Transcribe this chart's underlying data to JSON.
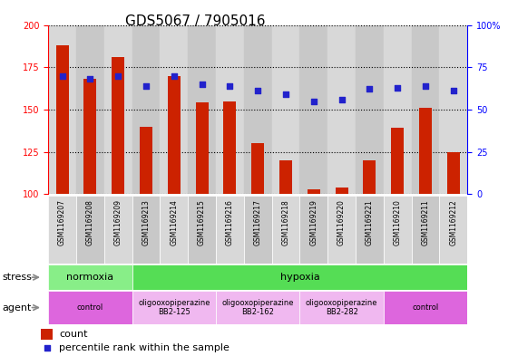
{
  "title": "GDS5067 / 7905016",
  "samples": [
    "GSM1169207",
    "GSM1169208",
    "GSM1169209",
    "GSM1169213",
    "GSM1169214",
    "GSM1169215",
    "GSM1169216",
    "GSM1169217",
    "GSM1169218",
    "GSM1169219",
    "GSM1169220",
    "GSM1169221",
    "GSM1169210",
    "GSM1169211",
    "GSM1169212"
  ],
  "counts": [
    188,
    168,
    181,
    140,
    170,
    154,
    155,
    130,
    120,
    103,
    104,
    120,
    139,
    151,
    125
  ],
  "percentile": [
    70,
    68,
    70,
    64,
    70,
    65,
    64,
    61,
    59,
    55,
    56,
    62,
    63,
    64,
    61
  ],
  "ylim_left": [
    100,
    200
  ],
  "ylim_right": [
    0,
    100
  ],
  "yticks_left": [
    100,
    125,
    150,
    175,
    200
  ],
  "yticks_right": [
    0,
    25,
    50,
    75,
    100
  ],
  "bar_color": "#cc2200",
  "dot_color": "#2222cc",
  "bar_base": 100,
  "stress_groups": [
    {
      "label": "normoxia",
      "start": 0,
      "end": 3,
      "color": "#88ee88"
    },
    {
      "label": "hypoxia",
      "start": 3,
      "end": 15,
      "color": "#55dd55"
    }
  ],
  "agent_groups": [
    {
      "label": "control",
      "start": 0,
      "end": 3,
      "color": "#dd66dd"
    },
    {
      "label": "oligooxopiperazine\nBB2-125",
      "start": 3,
      "end": 6,
      "color": "#f0b8f0"
    },
    {
      "label": "oligooxopiperazine\nBB2-162",
      "start": 6,
      "end": 9,
      "color": "#f0b8f0"
    },
    {
      "label": "oligooxopiperazine\nBB2-282",
      "start": 9,
      "end": 12,
      "color": "#f0b8f0"
    },
    {
      "label": "control",
      "start": 12,
      "end": 15,
      "color": "#dd66dd"
    }
  ],
  "stress_label": "stress",
  "agent_label": "agent",
  "legend_count_label": "count",
  "legend_pct_label": "percentile rank within the sample",
  "col_color_even": "#d8d8d8",
  "col_color_odd": "#c8c8c8",
  "plot_bg": "#ffffff",
  "tick_area_bg": "#d0d0d0",
  "title_fontsize": 11,
  "tick_fontsize": 7,
  "label_fontsize": 8
}
